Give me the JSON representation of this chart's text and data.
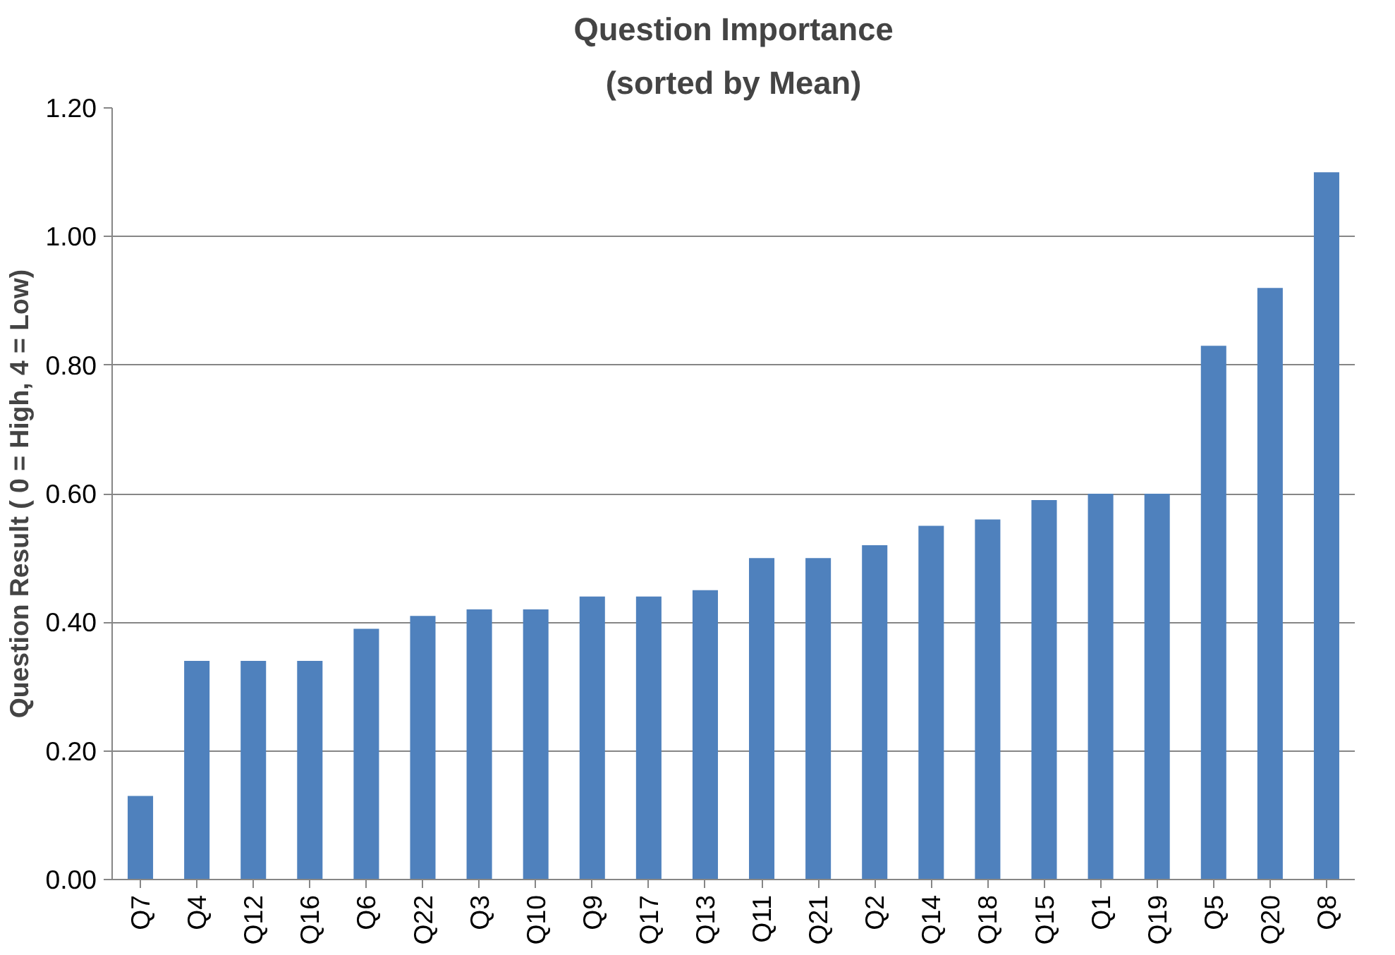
{
  "chart_data": {
    "type": "bar",
    "title": "Question Importance",
    "subtitle": "(sorted by Mean)",
    "ylabel": "Question Result ( 0 = High, 4 = Low)",
    "categories": [
      "Q7",
      "Q4",
      "Q12",
      "Q16",
      "Q6",
      "Q22",
      "Q3",
      "Q10",
      "Q9",
      "Q17",
      "Q13",
      "Q11",
      "Q21",
      "Q2",
      "Q14",
      "Q18",
      "Q15",
      "Q1",
      "Q19",
      "Q5",
      "Q20",
      "Q8"
    ],
    "values": [
      0.13,
      0.34,
      0.34,
      0.34,
      0.39,
      0.41,
      0.42,
      0.42,
      0.44,
      0.44,
      0.45,
      0.5,
      0.5,
      0.52,
      0.55,
      0.56,
      0.59,
      0.6,
      0.6,
      0.83,
      0.92,
      1.1
    ],
    "color": "#4f81bd",
    "ylim": [
      0,
      1.2
    ],
    "yticks": [
      {
        "value": 0,
        "label": "0.00"
      },
      {
        "value": 0.2,
        "label": "0.20"
      },
      {
        "value": 0.4,
        "label": "0.40"
      },
      {
        "value": 0.6,
        "label": "0.60"
      },
      {
        "value": 0.8,
        "label": "0.80"
      },
      {
        "value": 1.0,
        "label": "1.00"
      },
      {
        "value": 1.2,
        "label": "1.20"
      }
    ],
    "grid": "y"
  }
}
